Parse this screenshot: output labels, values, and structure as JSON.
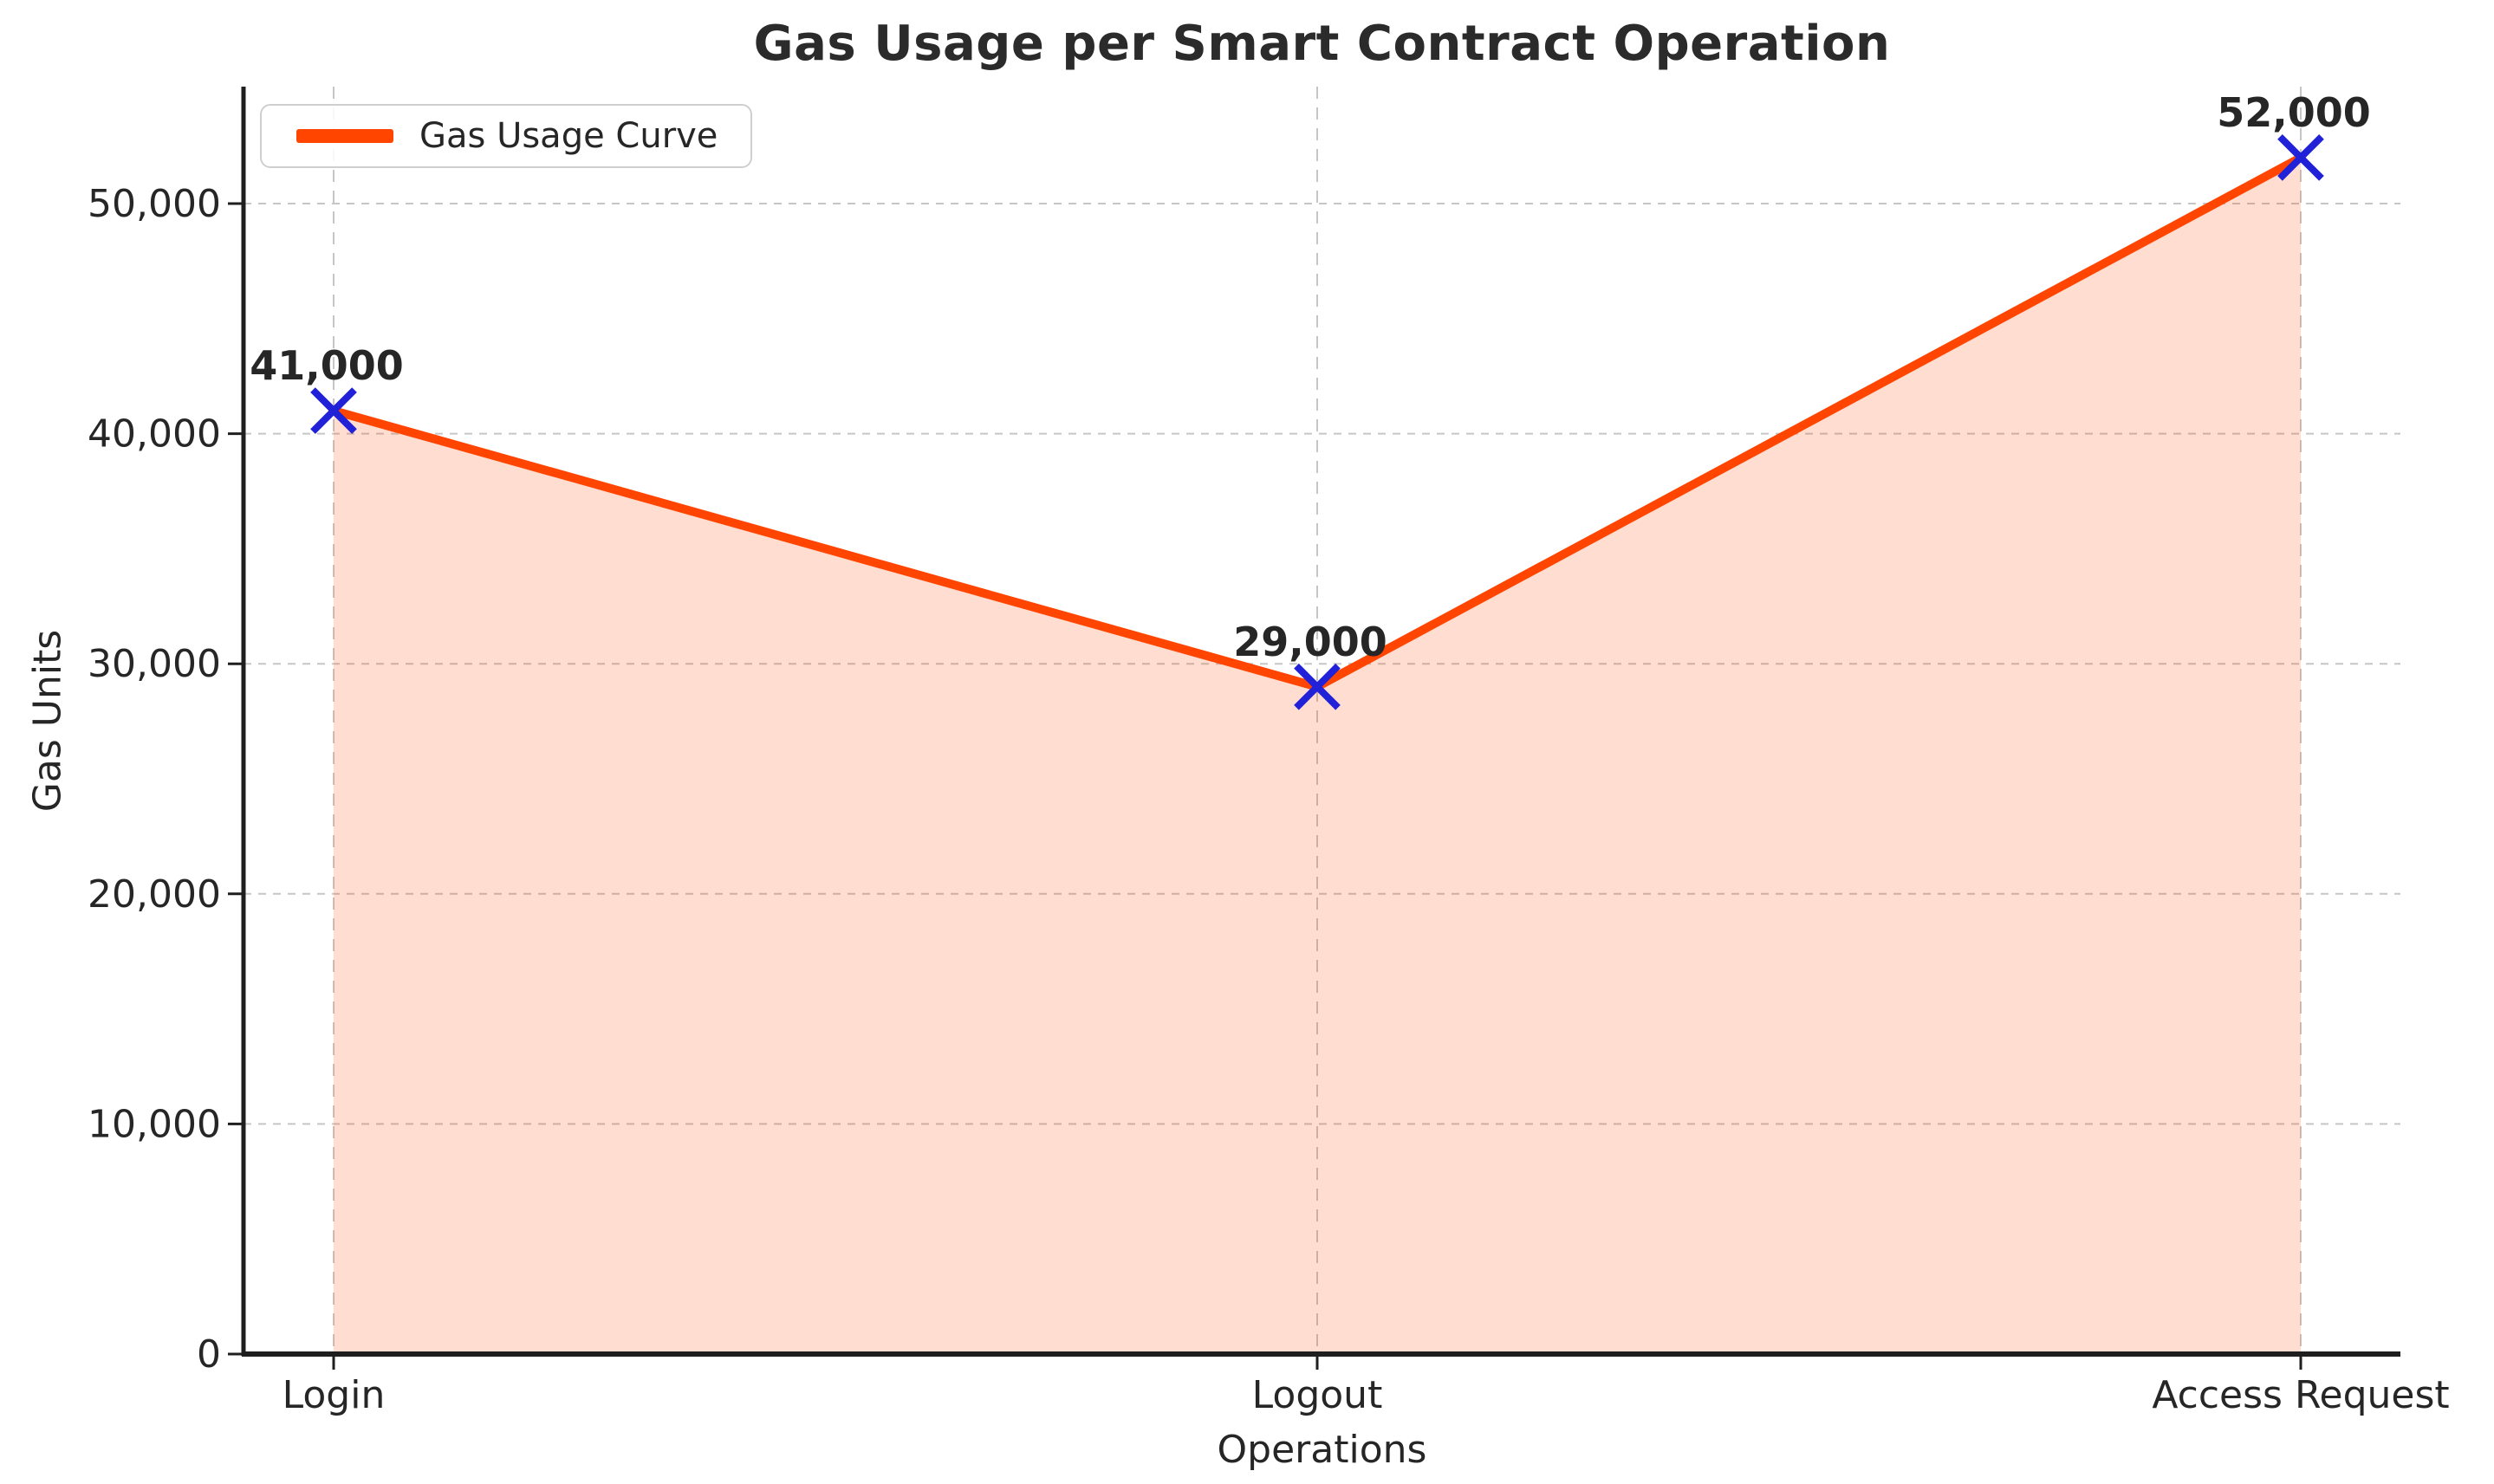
{
  "chart_data": {
    "type": "area",
    "title": "Gas Usage per Smart Contract Operation",
    "xlabel": "Operations",
    "ylabel": "Gas Units",
    "categories": [
      "Login",
      "Logout",
      "Access Request"
    ],
    "series": [
      {
        "name": "Gas Usage Curve",
        "values": [
          41000,
          29000,
          52000
        ]
      }
    ],
    "point_labels": [
      "41,000",
      "29,000",
      "52,000"
    ],
    "yticks": [
      0,
      10000,
      20000,
      30000,
      40000,
      50000
    ],
    "ytick_labels": [
      "0",
      "10,000",
      "20,000",
      "30,000",
      "40,000",
      "50,000"
    ],
    "ylim": [
      0,
      55100
    ],
    "grid": true,
    "grid_style": "dashed",
    "legend": [
      "Gas Usage Curve"
    ],
    "legend_position": "upper left",
    "marker": "x",
    "colors": {
      "line": "#FF4500",
      "fill": "#FF4500",
      "fill_opacity": 0.18,
      "marker": "#2121D8",
      "grid": "#c6c6c6",
      "spine": "#1f1f1f",
      "text": "#262626"
    }
  }
}
